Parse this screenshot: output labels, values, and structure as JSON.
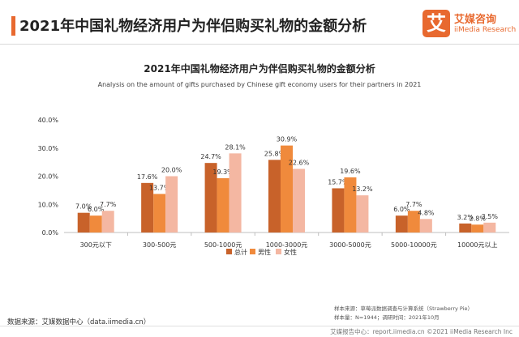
{
  "header": {
    "title": "2021年中国礼物经济用户为伴侣购买礼物的金额分析"
  },
  "logo": {
    "mark": "艾",
    "name_cn": "艾媒咨询",
    "name_en": "iiMedia Research"
  },
  "notes": {
    "sample_source": "样本来源：草莓派数据调查与计算系统（Strawberry Pie）",
    "sample_size": "样本量：N=1944；调研时间：2021年10月",
    "data_source": "数据来源：艾媒数据中心（data.iimedia.cn）",
    "footer": "艾媒报告中心：report.iimedia.cn  ©2021  iiMedia Research  Inc"
  },
  "colors": {
    "total": "#c8622a",
    "male": "#f08a3c",
    "female": "#f4b7a2",
    "accent": "#e8692f"
  },
  "chart_data": {
    "type": "bar",
    "title": "2021年中国礼物经济用户为伴侣购买礼物的金额分析",
    "subtitle": "Analysis on the amount of gifts purchased by Chinese gift economy users for their partners in 2021",
    "categories": [
      "300元以下",
      "300-500元",
      "500-1000元",
      "1000-3000元",
      "3000-5000元",
      "5000-10000元",
      "10000元以上"
    ],
    "series": [
      {
        "name": "总计",
        "values": [
          7.0,
          17.6,
          24.7,
          25.8,
          15.7,
          6.0,
          3.2
        ]
      },
      {
        "name": "男性",
        "values": [
          6.0,
          13.7,
          19.3,
          30.9,
          19.6,
          7.7,
          2.8
        ]
      },
      {
        "name": "女性",
        "values": [
          7.7,
          20.0,
          28.1,
          22.6,
          13.2,
          4.8,
          3.5
        ]
      }
    ],
    "yticks": [
      "0.0%",
      "10.0%",
      "20.0%",
      "30.0%",
      "40.0%"
    ],
    "ylim": [
      0,
      40
    ],
    "unit": "%",
    "legend": "bottom-right",
    "grid": false
  }
}
